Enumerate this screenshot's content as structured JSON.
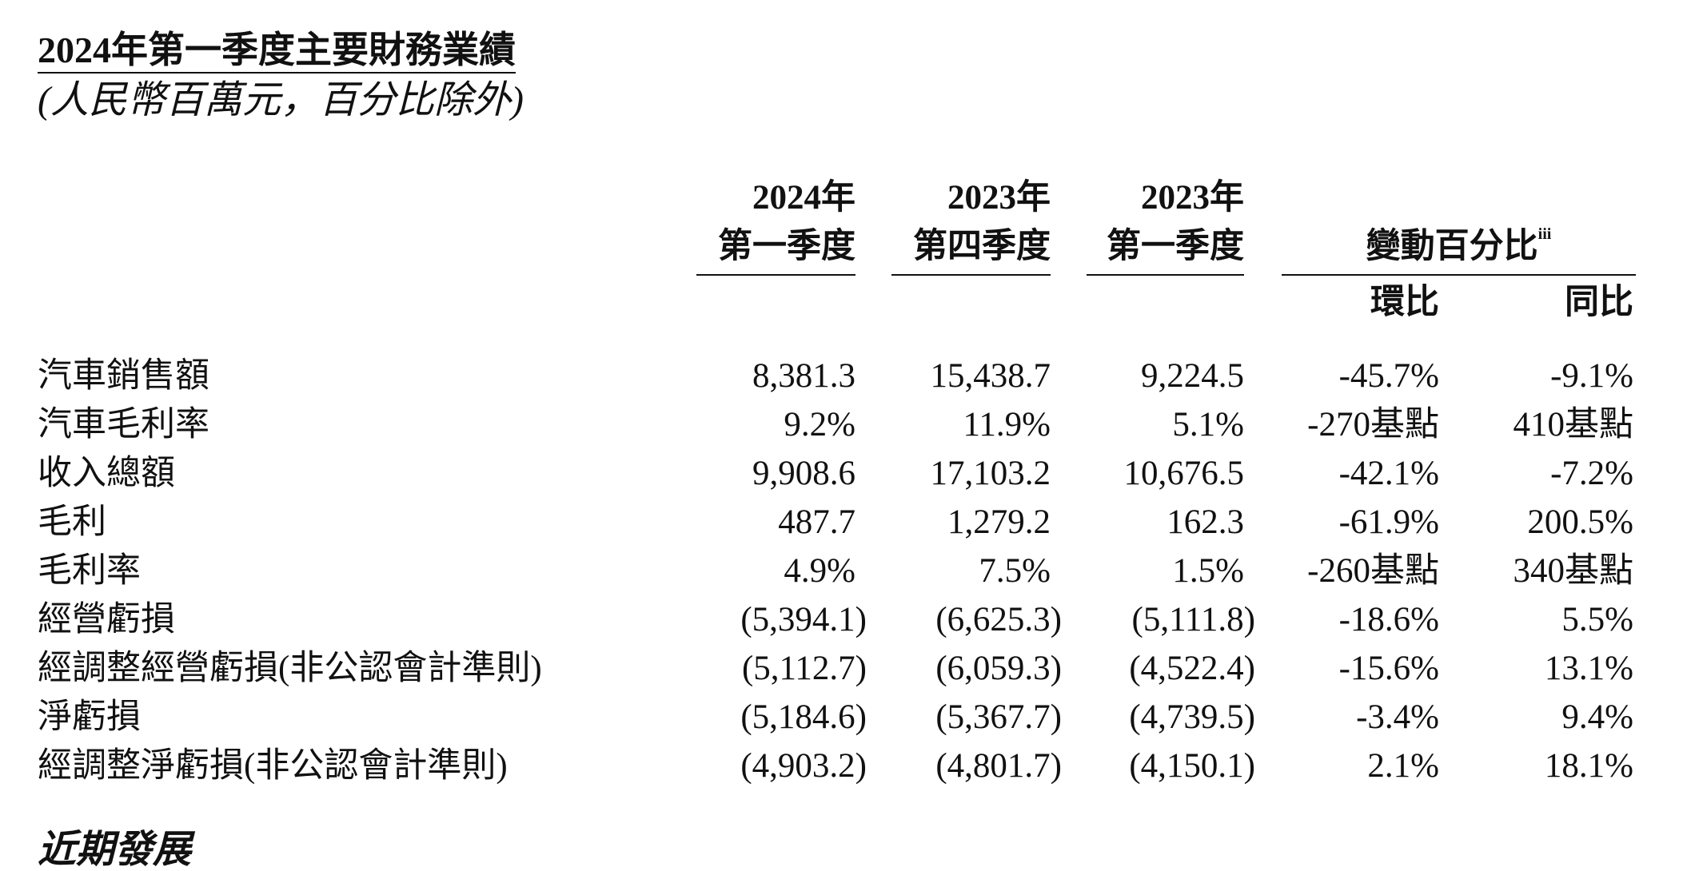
{
  "header": {
    "title": "2024年第一季度主要財務業績",
    "subtitle": "(人民幣百萬元，百分比除外)"
  },
  "table": {
    "columns": [
      {
        "line1": "2024年",
        "line2": "第一季度"
      },
      {
        "line1": "2023年",
        "line2": "第四季度"
      },
      {
        "line1": "2023年",
        "line2": "第一季度"
      }
    ],
    "change_header": "變動百分比",
    "change_note": "iii",
    "change_columns": [
      "環比",
      "同比"
    ],
    "rows": [
      [
        "汽車銷售額",
        "8,381.3",
        "15,438.7",
        "9,224.5",
        "-45.7%",
        "-9.1%"
      ],
      [
        "汽車毛利率",
        "9.2%",
        "11.9%",
        "5.1%",
        "-270基點",
        "410基點"
      ],
      [
        "收入總額",
        "9,908.6",
        "17,103.2",
        "10,676.5",
        "-42.1%",
        "-7.2%"
      ],
      [
        "毛利",
        "487.7",
        "1,279.2",
        "162.3",
        "-61.9%",
        "200.5%"
      ],
      [
        "毛利率",
        "4.9%",
        "7.5%",
        "1.5%",
        "-260基點",
        "340基點"
      ],
      [
        "經營虧損",
        "(5,394.1)",
        "(6,625.3)",
        "(5,111.8)",
        "-18.6%",
        "5.5%"
      ],
      [
        "經調整經營虧損(非公認會計準則)",
        "(5,112.7)",
        "(6,059.3)",
        "(4,522.4)",
        "-15.6%",
        "13.1%"
      ],
      [
        "淨虧損",
        "(5,184.6)",
        "(5,367.7)",
        "(4,739.5)",
        "-3.4%",
        "9.4%"
      ],
      [
        "經調整淨虧損(非公認會計準則)",
        "(4,903.2)",
        "(4,801.7)",
        "(4,150.1)",
        "2.1%",
        "18.1%"
      ]
    ]
  },
  "footer": {
    "section_title": "近期發展"
  }
}
